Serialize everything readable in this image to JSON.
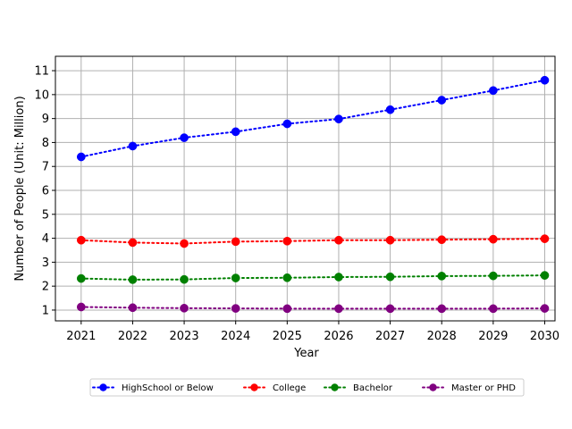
{
  "chart_data": {
    "type": "line",
    "title": "",
    "xlabel": "Year",
    "ylabel": "Number of People (Unit: Million)",
    "x": [
      2021,
      2022,
      2023,
      2024,
      2025,
      2026,
      2027,
      2028,
      2029,
      2030
    ],
    "xlim": [
      2020.5,
      2030.2
    ],
    "ylim": [
      0.55,
      11.6
    ],
    "yticks": [
      1,
      2,
      3,
      4,
      5,
      6,
      7,
      8,
      9,
      10,
      11
    ],
    "grid": true,
    "line_style": "dotted",
    "marker": "circle",
    "legend_position": "bottom-center",
    "legend_columns": 4,
    "series": [
      {
        "name": "HighSchool or Below",
        "color": "#0000ff",
        "values": [
          7.4,
          7.85,
          8.2,
          8.45,
          8.78,
          8.98,
          9.37,
          9.77,
          10.17,
          10.6
        ]
      },
      {
        "name": "College",
        "color": "#ff0000",
        "values": [
          3.92,
          3.82,
          3.78,
          3.86,
          3.88,
          3.92,
          3.92,
          3.94,
          3.96,
          3.98
        ]
      },
      {
        "name": "Bachelor",
        "color": "#008000",
        "values": [
          2.32,
          2.27,
          2.28,
          2.34,
          2.35,
          2.38,
          2.39,
          2.42,
          2.43,
          2.45
        ]
      },
      {
        "name": "Master or PHD",
        "color": "#800080",
        "values": [
          1.13,
          1.1,
          1.08,
          1.07,
          1.06,
          1.06,
          1.06,
          1.06,
          1.06,
          1.07
        ]
      }
    ]
  }
}
